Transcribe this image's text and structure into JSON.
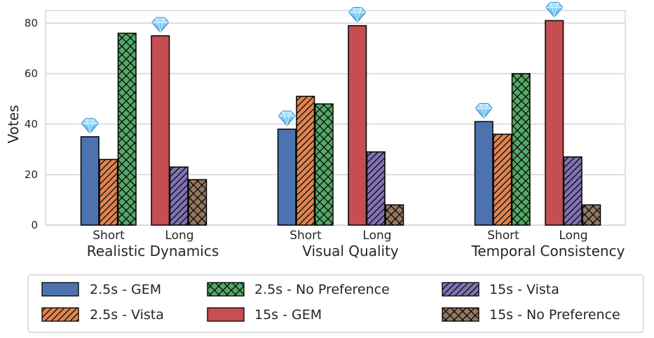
{
  "chart_data": {
    "type": "bar",
    "ylabel": "Votes",
    "ylim": [
      0,
      85
    ],
    "yticks": [
      0,
      20,
      40,
      60,
      80
    ],
    "grid": true,
    "legend_position": "bottom",
    "groups": [
      {
        "label": "Realistic Dynamics",
        "short_label": "Short",
        "long_label": "Long"
      },
      {
        "label": "Visual Quality",
        "short_label": "Short",
        "long_label": "Long"
      },
      {
        "label": "Temporal Consistency",
        "short_label": "Short",
        "long_label": "Long"
      }
    ],
    "series": [
      {
        "name": "2.5s - GEM",
        "color": "#4c72b0",
        "hatch": "none",
        "values": [
          35,
          38,
          41
        ],
        "winner": [
          true,
          true,
          true
        ]
      },
      {
        "name": "2.5s - Vista",
        "color": "#dd8452",
        "hatch": "diag",
        "values": [
          26,
          51,
          36
        ],
        "winner": [
          false,
          false,
          false
        ]
      },
      {
        "name": "2.5s - No Preference",
        "color": "#55a868",
        "hatch": "cross",
        "values": [
          76,
          48,
          60
        ],
        "winner": [
          false,
          false,
          false
        ]
      },
      {
        "name": "15s - GEM",
        "color": "#c44e52",
        "hatch": "none",
        "values": [
          75,
          79,
          81
        ],
        "winner": [
          true,
          true,
          true
        ]
      },
      {
        "name": "15s - Vista",
        "color": "#8172b3",
        "hatch": "diag",
        "values": [
          23,
          29,
          27
        ],
        "winner": [
          false,
          false,
          false
        ]
      },
      {
        "name": "15s - No Preference",
        "color": "#937860",
        "hatch": "cross",
        "values": [
          18,
          8,
          8
        ],
        "winner": [
          false,
          false,
          false
        ]
      }
    ],
    "winner_marker": "gem-icon"
  }
}
